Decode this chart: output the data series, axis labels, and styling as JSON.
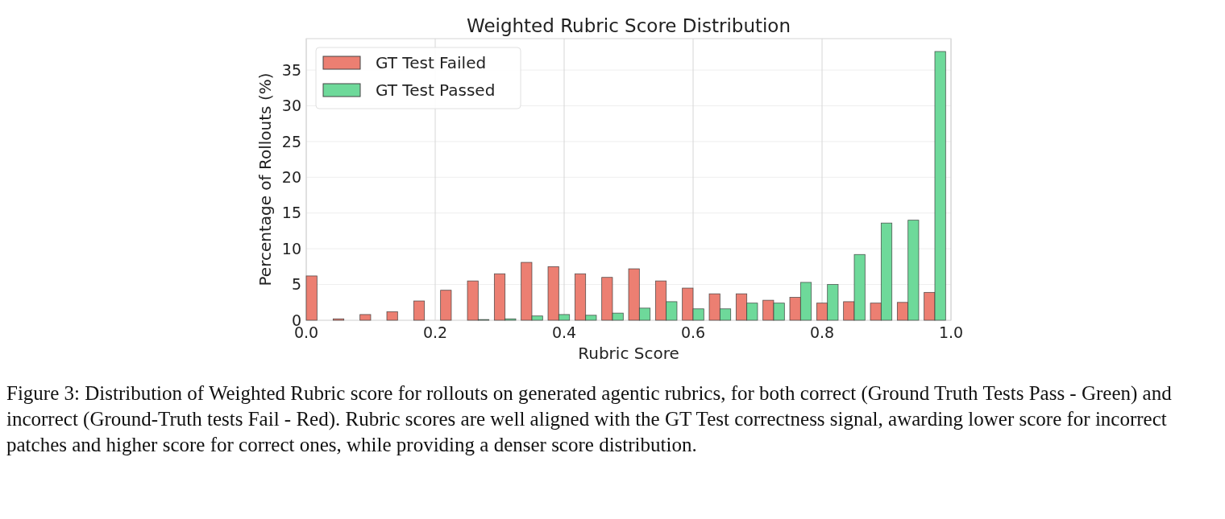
{
  "chart_data": {
    "type": "histogram",
    "title": "Weighted Rubric Score Distribution",
    "xlabel": "Rubric Score",
    "ylabel": "Percentage of Rollouts (%)",
    "bins": [
      0,
      0.0417,
      0.0833,
      0.125,
      0.1667,
      0.2083,
      0.25,
      0.2917,
      0.3333,
      0.375,
      0.4167,
      0.4583,
      0.5,
      0.5417,
      0.5833,
      0.625,
      0.6667,
      0.7083,
      0.75,
      0.7917,
      0.8333,
      0.875,
      0.9167,
      0.9583,
      1
    ],
    "series": [
      {
        "name": "GT Test Failed",
        "color": "#ec7f72",
        "values": [
          6.2,
          0.2,
          0.8,
          1.2,
          2.7,
          4.2,
          5.5,
          6.5,
          8.1,
          7.5,
          6.5,
          6.0,
          7.2,
          5.5,
          4.5,
          3.7,
          3.7,
          2.8,
          3.2,
          2.4,
          2.6,
          2.4,
          2.5,
          3.9
        ]
      },
      {
        "name": "GT Test Passed",
        "color": "#6ed99a",
        "values": [
          0,
          0,
          0,
          0,
          0,
          0,
          0.1,
          0.2,
          0.6,
          0.8,
          0.7,
          1.0,
          1.7,
          2.6,
          1.6,
          1.6,
          2.4,
          2.4,
          5.3,
          5.0,
          9.2,
          13.6,
          14.0,
          37.6
        ]
      }
    ],
    "xlim": [
      0,
      1
    ],
    "xticks": [
      {
        "value": 0,
        "label": "0.0"
      },
      {
        "value": 0.2,
        "label": "0.2"
      },
      {
        "value": 0.4,
        "label": "0.4"
      },
      {
        "value": 0.6,
        "label": "0.6"
      },
      {
        "value": 0.8,
        "label": "0.8"
      },
      {
        "value": 1,
        "label": "1.0"
      }
    ],
    "ylim": [
      0,
      39.4
    ],
    "yticks": [
      0,
      5,
      10,
      15,
      20,
      25,
      30,
      35
    ],
    "grid": true,
    "legend": "top left",
    "annotations": [
      "Figure 3: Distribution of Weighted Rubric score for rollouts on generated agentic rubrics, for both correct (Ground Truth Tests Pass - Green) and incorrect (Ground-Truth tests Fail - Red). Rubric scores are well aligned with the GT Test correctness signal, awarding lower score for incorrect patches and higher score for correct ones, while providing a denser score distribution."
    ]
  }
}
